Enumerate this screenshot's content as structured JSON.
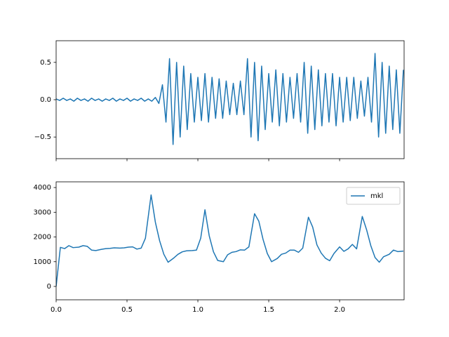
{
  "chart_data": [
    {
      "type": "line",
      "x": [
        0,
        0.025,
        0.05,
        0.075,
        0.1,
        0.125,
        0.15,
        0.175,
        0.2,
        0.225,
        0.25,
        0.275,
        0.3,
        0.325,
        0.35,
        0.375,
        0.4,
        0.425,
        0.45,
        0.475,
        0.5,
        0.525,
        0.55,
        0.575,
        0.6,
        0.625,
        0.65,
        0.675,
        0.7,
        0.725,
        0.75,
        0.775,
        0.8,
        0.825,
        0.85,
        0.875,
        0.9,
        0.925,
        0.95,
        0.975,
        1,
        1.025,
        1.05,
        1.075,
        1.1,
        1.125,
        1.15,
        1.175,
        1.2,
        1.225,
        1.25,
        1.275,
        1.3,
        1.325,
        1.35,
        1.375,
        1.4,
        1.425,
        1.45,
        1.475,
        1.5,
        1.525,
        1.55,
        1.575,
        1.6,
        1.625,
        1.65,
        1.675,
        1.7,
        1.725,
        1.75,
        1.775,
        1.8,
        1.825,
        1.85,
        1.875,
        1.9,
        1.925,
        1.95,
        1.975,
        2,
        2.025,
        2.05,
        2.075,
        2.1,
        2.125,
        2.15,
        2.175,
        2.2,
        2.225,
        2.25,
        2.275,
        2.3,
        2.325,
        2.35,
        2.375,
        2.4,
        2.425,
        2.45
      ],
      "series": [
        {
          "color": "#1f77b4",
          "values": [
            0.01,
            -0.01,
            0.02,
            -0.01,
            0.01,
            -0.02,
            0.02,
            -0.01,
            0.01,
            -0.02,
            0.02,
            -0.01,
            0.01,
            -0.02,
            0.01,
            -0.01,
            0.02,
            -0.02,
            0.01,
            -0.01,
            0.02,
            -0.02,
            0.01,
            -0.01,
            0.02,
            -0.02,
            0.01,
            -0.02,
            0.03,
            -0.05,
            0.2,
            -0.3,
            0.55,
            -0.6,
            0.5,
            -0.5,
            0.45,
            -0.4,
            0.35,
            -0.3,
            0.3,
            -0.28,
            0.35,
            -0.3,
            0.3,
            -0.25,
            0.28,
            -0.25,
            0.25,
            -0.2,
            0.22,
            -0.2,
            0.25,
            -0.2,
            0.55,
            -0.5,
            0.5,
            -0.55,
            0.45,
            -0.4,
            0.35,
            -0.3,
            0.4,
            -0.35,
            0.35,
            -0.3,
            0.3,
            -0.25,
            0.35,
            -0.3,
            0.5,
            -0.45,
            0.45,
            -0.4,
            0.4,
            -0.35,
            0.35,
            -0.3,
            0.35,
            -0.35,
            0.3,
            -0.3,
            0.3,
            -0.28,
            0.3,
            -0.25,
            0.25,
            -0.22,
            0.3,
            -0.3,
            0.62,
            -0.5,
            0.5,
            -0.45,
            0.45,
            -0.4,
            0.4,
            -0.45,
            0.4
          ]
        }
      ],
      "xlim": [
        0,
        2.455
      ],
      "ylim": [
        -0.79,
        0.79
      ],
      "xticks": [
        0,
        0.5,
        1,
        1.5,
        2
      ],
      "show_xtick_labels": false,
      "yticks": [
        {
          "value": -0.5,
          "label": "−0.5"
        },
        {
          "value": 0,
          "label": "0.0"
        },
        {
          "value": 0.5,
          "label": "0.5"
        }
      ]
    },
    {
      "type": "line",
      "x": [
        0,
        0.03,
        0.06,
        0.09,
        0.12,
        0.16,
        0.19,
        0.22,
        0.25,
        0.28,
        0.32,
        0.35,
        0.38,
        0.41,
        0.45,
        0.48,
        0.51,
        0.54,
        0.57,
        0.6,
        0.63,
        0.67,
        0.7,
        0.73,
        0.76,
        0.79,
        0.83,
        0.86,
        0.89,
        0.92,
        0.96,
        0.99,
        1.02,
        1.05,
        1.08,
        1.11,
        1.14,
        1.18,
        1.21,
        1.24,
        1.27,
        1.3,
        1.33,
        1.36,
        1.4,
        1.43,
        1.46,
        1.49,
        1.52,
        1.56,
        1.59,
        1.62,
        1.65,
        1.68,
        1.71,
        1.74,
        1.78,
        1.81,
        1.84,
        1.87,
        1.9,
        1.93,
        1.96,
        2,
        2.03,
        2.06,
        2.09,
        2.12,
        2.16,
        2.19,
        2.22,
        2.25,
        2.28,
        2.31,
        2.35,
        2.38,
        2.41,
        2.45
      ],
      "series": [
        {
          "name": "mkl",
          "color": "#1f77b4",
          "values": [
            0,
            1580,
            1530,
            1650,
            1570,
            1590,
            1650,
            1620,
            1470,
            1450,
            1500,
            1530,
            1540,
            1560,
            1550,
            1560,
            1590,
            1600,
            1510,
            1550,
            1950,
            3700,
            2600,
            1850,
            1300,
            980,
            1150,
            1300,
            1400,
            1440,
            1450,
            1470,
            1950,
            3100,
            2050,
            1400,
            1050,
            1000,
            1280,
            1380,
            1410,
            1480,
            1470,
            1600,
            2940,
            2640,
            1900,
            1330,
            1000,
            1130,
            1300,
            1350,
            1470,
            1470,
            1380,
            1550,
            2800,
            2400,
            1680,
            1350,
            1140,
            1040,
            1330,
            1600,
            1420,
            1520,
            1700,
            1520,
            2830,
            2300,
            1650,
            1170,
            980,
            1200,
            1300,
            1470,
            1410,
            1430
          ]
        }
      ],
      "xlim": [
        0,
        2.455
      ],
      "ylim": [
        -540,
        4230
      ],
      "xticks": [
        {
          "value": 0,
          "label": "0.0"
        },
        {
          "value": 0.5,
          "label": "0.5"
        },
        {
          "value": 1,
          "label": "1.0"
        },
        {
          "value": 1.5,
          "label": "1.5"
        },
        {
          "value": 2,
          "label": "2.0"
        }
      ],
      "show_xtick_labels": true,
      "yticks": [
        0,
        1000,
        2000,
        3000,
        4000
      ],
      "legend": "upper right"
    }
  ]
}
